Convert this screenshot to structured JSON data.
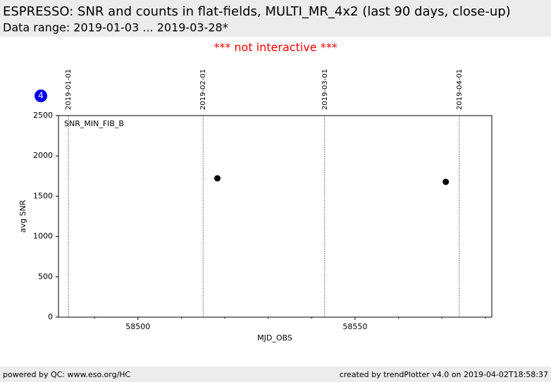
{
  "header": {
    "title": "ESPRESSO: SNR and counts in flat-fields, MULTI_MR_4x2 (last 90 days, close-up)",
    "subtitle": "Data range: 2019-01-03 ... 2019-03-28*"
  },
  "notice": "*** not interactive ***",
  "badge": "4",
  "footer": {
    "left": "powered by QC: www.eso.org/HC",
    "right": "created by trendPlotter v4.0 on 2019-04-02T18:58:37"
  },
  "chart_data": {
    "type": "scatter",
    "annotation": "SNR_MIN_FIB_B",
    "xlabel": "MJD_OBS",
    "ylabel": "avg SNR",
    "x": [
      58518.3,
      58570.9
    ],
    "values": [
      1722,
      1678
    ],
    "color": "#000000",
    "xlim": [
      58481.7,
      58581.5
    ],
    "ylim": [
      0,
      2500
    ],
    "xticks": [
      58500,
      58550
    ],
    "xminor_ticks": [
      58490,
      58510,
      58520,
      58530,
      58540,
      58560,
      58570,
      58580
    ],
    "yticks": [
      0,
      500,
      1000,
      1500,
      2000,
      2500
    ],
    "date_markers": [
      {
        "value": 58484,
        "label": "2019-01-01"
      },
      {
        "value": 58515,
        "label": "2019-02-01"
      },
      {
        "value": 58543,
        "label": "2019-03-01"
      },
      {
        "value": 58574,
        "label": "2019-04-01"
      }
    ]
  }
}
